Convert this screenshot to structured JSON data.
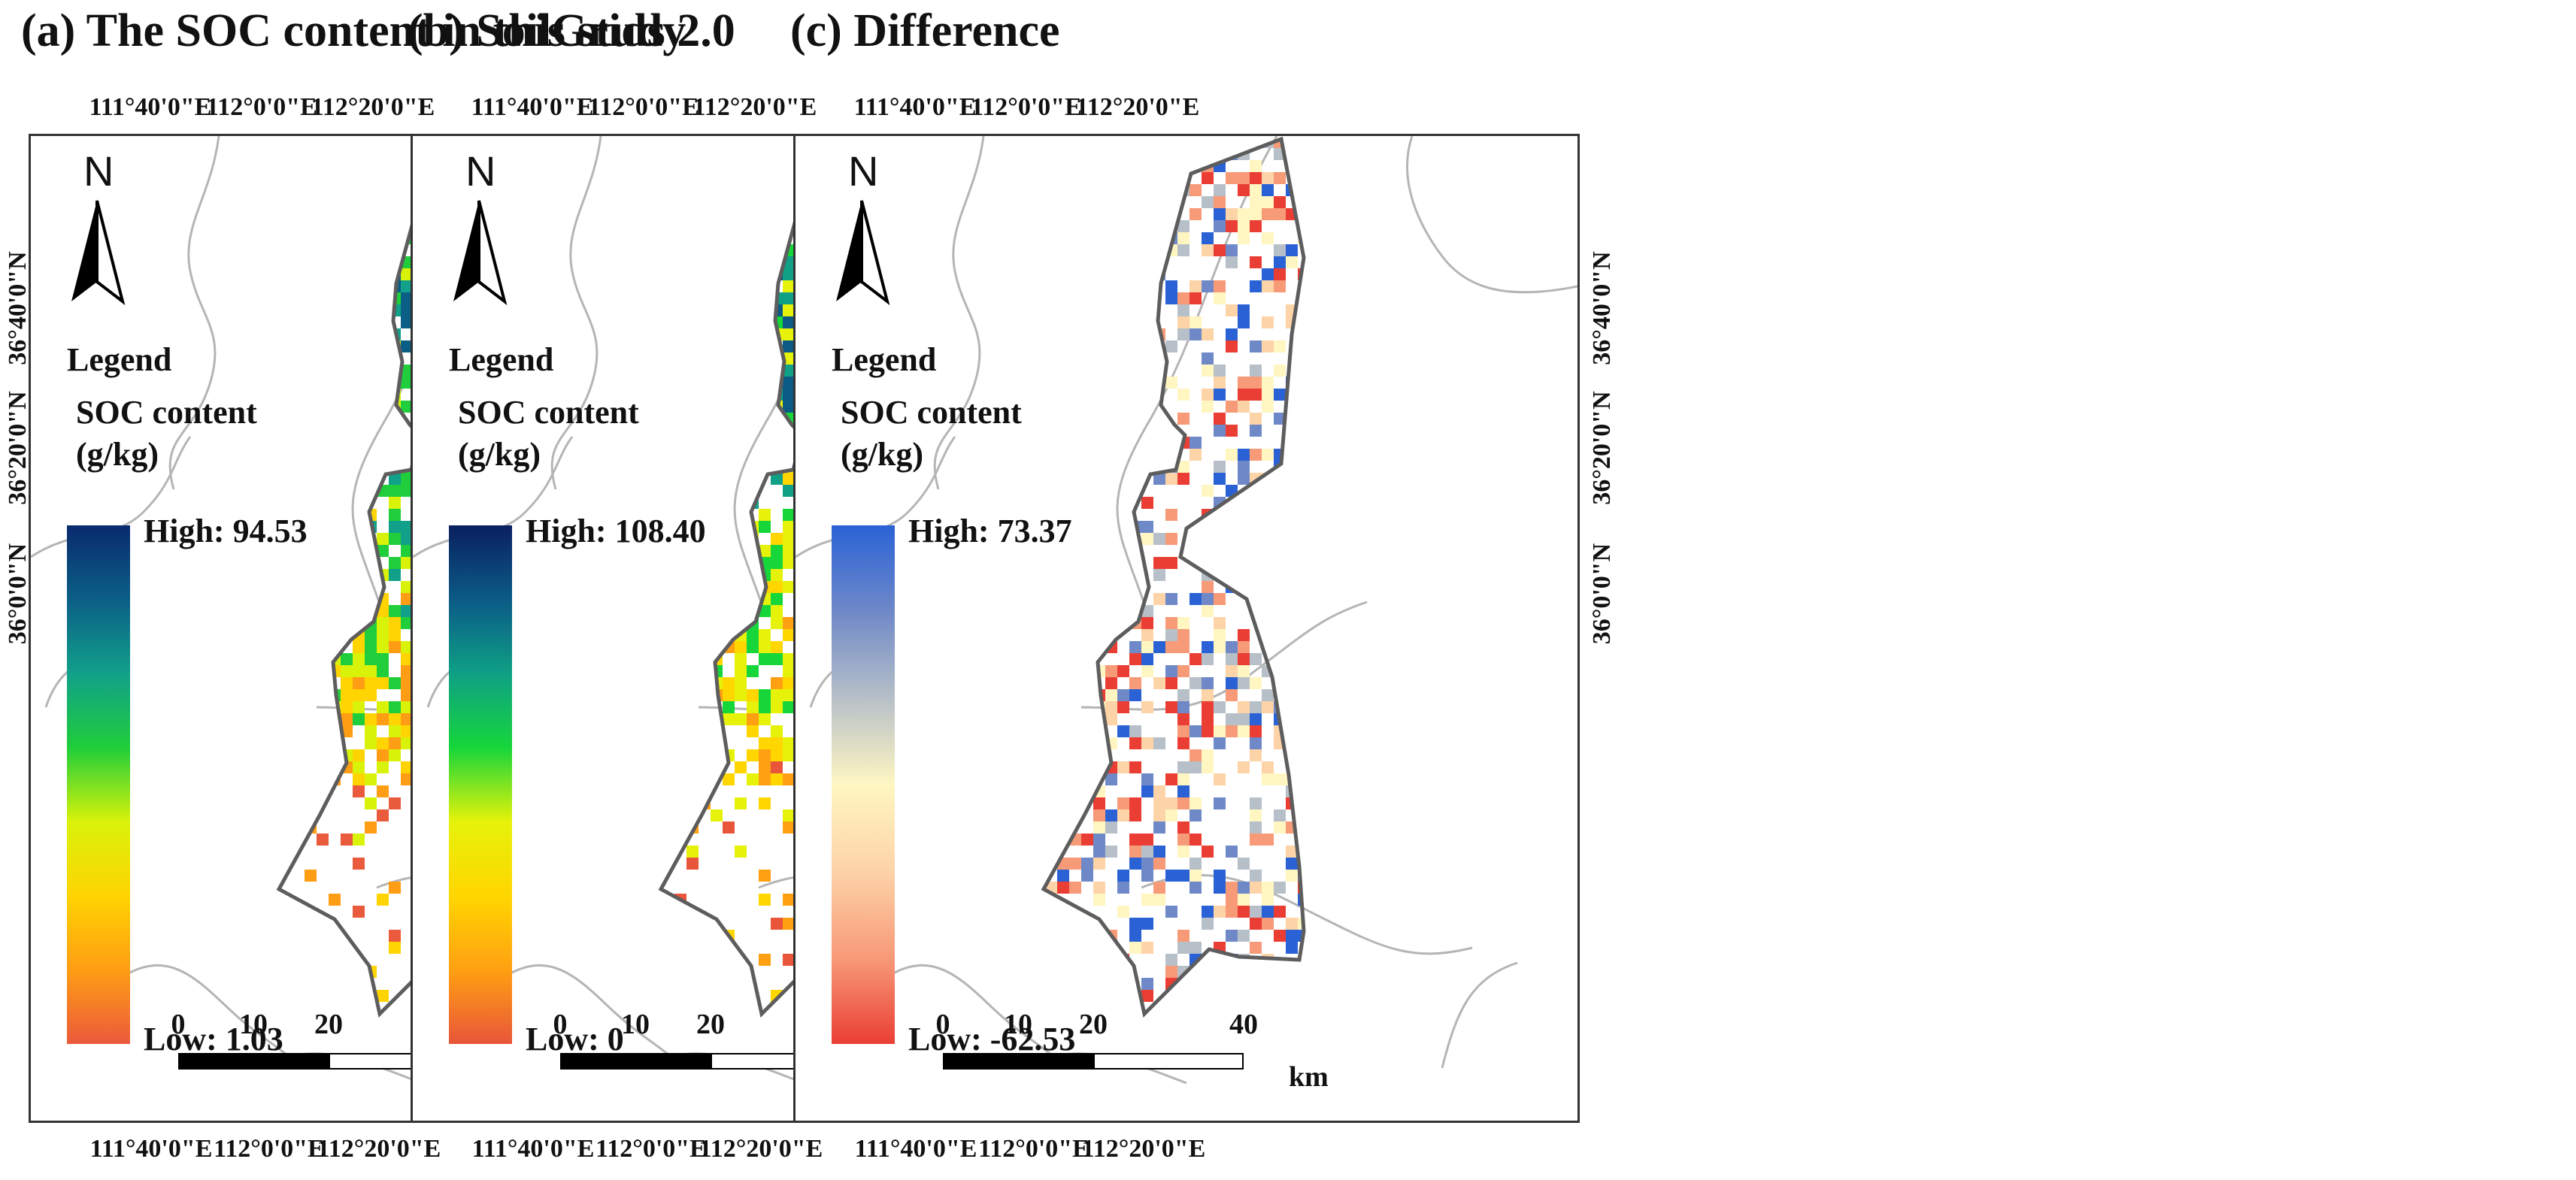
{
  "panels": [
    {
      "title": "(a) The SOC content in this study",
      "north": "N",
      "legend_title": "Legend",
      "legend_line1": "SOC content",
      "legend_line2": "(g/kg)",
      "high": "High: 94.53",
      "low": "Low: 1.03",
      "palette": "soc",
      "lon_top": [
        "111°40'0\"E",
        "112°0'0\"E",
        "112°20'0\"E"
      ],
      "lon_bottom": [
        "111°40'0\"E",
        "112°0'0\"E",
        "112°20'0\"E"
      ],
      "lat_left": [
        "36°40'0\"N",
        "36°20'0\"N",
        "36°0'0\"N"
      ],
      "lat_right": []
    },
    {
      "title": "(b) SoilGrids 2.0",
      "north": "N",
      "legend_title": "Legend",
      "legend_line1": "SOC content",
      "legend_line2": "(g/kg)",
      "high": "High:  108.40",
      "low": "Low: 0",
      "palette": "soilgrids",
      "lon_top": [
        "111°40'0\"E",
        "112°0'0\"E",
        "112°20'0\"E"
      ],
      "lon_bottom": [
        "111°40'0\"E",
        "112°0'0\"E",
        "112°20'0\"E"
      ],
      "lat_left": [],
      "lat_right": []
    },
    {
      "title": "(c) Difference",
      "north": "N",
      "legend_title": "Legend",
      "legend_line1": "SOC content",
      "legend_line2": "(g/kg)",
      "high": "High:  73.37",
      "low": "Low: -62.53",
      "palette": "diff",
      "lon_top": [
        "111°40'0\"E",
        "112°0'0\"E",
        "112°20'0\"E"
      ],
      "lon_bottom": [
        "111°40'0\"E",
        "112°0'0\"E",
        "112°20'0\"E"
      ],
      "lat_left": [],
      "lat_right": [
        "36°40'0\"N",
        "36°20'0\"N",
        "36°0'0\"N"
      ]
    }
  ],
  "scale_bar": {
    "ticks": [
      "0",
      "10",
      "20",
      "40"
    ],
    "unit": "km"
  },
  "colors": {
    "soc": [
      "#0a2a6e",
      "#0b5f86",
      "#11a08a",
      "#1fce3a",
      "#d9f20a",
      "#ffd400",
      "#ff9d14",
      "#ea5a3c"
    ],
    "soilgrids": [
      "#0a2060",
      "#0b5a86",
      "#0fa085",
      "#16d63a",
      "#e6f20a",
      "#ffd600",
      "#ffa012",
      "#e8553a"
    ],
    "diff": [
      "#2a62d6",
      "#6f89c8",
      "#b7c0c8",
      "#fff6c2",
      "#fdd3a8",
      "#f79a78",
      "#ea3e34"
    ]
  }
}
